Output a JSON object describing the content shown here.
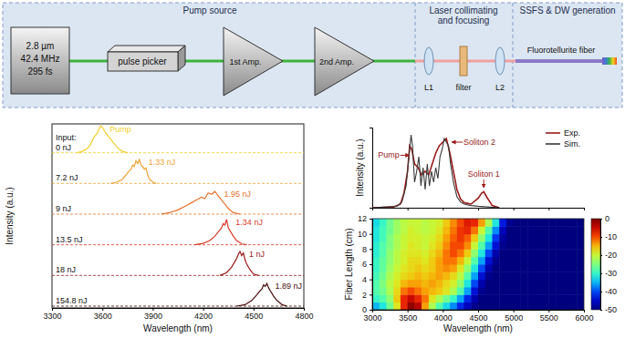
{
  "diagram": {
    "sections": [
      {
        "lines": [
          "Pump source"
        ]
      },
      {
        "lines": [
          "Laser collimating",
          "and focusing"
        ]
      },
      {
        "lines": [
          "SSFS & DW generation"
        ]
      }
    ],
    "source": {
      "lines": [
        "2.8 µm",
        "42.4 MHz",
        "295 fs"
      ]
    },
    "pulse_picker": "pulse picker",
    "amplifiers": [
      "1st Amp.",
      "2nd Amp."
    ],
    "optics": [
      "L1",
      "filter",
      "L2"
    ],
    "fiber": "Fluorotellurite fiber"
  },
  "chart_data": [
    {
      "type": "line",
      "xlabel": "Wavelength (nm)",
      "ylabel": "Intensity (a.u.)",
      "xlim": [
        3300,
        4800
      ],
      "xticks": [
        3300,
        3600,
        3900,
        4200,
        4500,
        4800
      ],
      "ylim": [
        0,
        1
      ],
      "tick_labels": "x",
      "stacked": true,
      "annotations": [
        "Input:"
      ],
      "series": [
        {
          "name": "0 nJ",
          "label": "Pump",
          "color": "#f2cf2a",
          "x": [
            3450,
            3480,
            3510,
            3530,
            3550,
            3570,
            3580,
            3590,
            3600,
            3610,
            3620,
            3640,
            3660,
            3680,
            3700,
            3720,
            3750
          ],
          "values": [
            0,
            0.05,
            0.15,
            0.3,
            0.55,
            0.7,
            0.85,
            0.95,
            0.9,
            0.8,
            0.7,
            0.55,
            0.4,
            0.25,
            0.12,
            0.05,
            0
          ]
        },
        {
          "name": "7.2 nJ",
          "label": "1.33 nJ",
          "color": "#f0a232",
          "x": [
            3650,
            3690,
            3720,
            3740,
            3760,
            3770,
            3780,
            3790,
            3800,
            3810,
            3820,
            3830,
            3840,
            3850,
            3860,
            3870,
            3880,
            3900,
            3920
          ],
          "values": [
            0,
            0.05,
            0.15,
            0.3,
            0.45,
            0.5,
            0.65,
            0.6,
            0.8,
            0.7,
            0.85,
            0.65,
            0.6,
            0.5,
            0.55,
            0.3,
            0.15,
            0.05,
            0
          ]
        },
        {
          "name": "9 nJ",
          "label": "1.95 nJ",
          "color": "#e8722c",
          "x": [
            3950,
            4000,
            4050,
            4100,
            4130,
            4160,
            4190,
            4210,
            4230,
            4250,
            4270,
            4290,
            4310,
            4330,
            4350,
            4380,
            4420
          ],
          "values": [
            0,
            0.05,
            0.15,
            0.3,
            0.4,
            0.5,
            0.6,
            0.55,
            0.75,
            0.7,
            0.8,
            0.65,
            0.5,
            0.35,
            0.2,
            0.05,
            0
          ]
        },
        {
          "name": "13.5 nJ",
          "label": "1.34 nJ",
          "color": "#d83a2a",
          "x": [
            4150,
            4200,
            4240,
            4270,
            4290,
            4310,
            4320,
            4330,
            4340,
            4350,
            4360,
            4380,
            4400,
            4430,
            4460
          ],
          "values": [
            0,
            0.05,
            0.15,
            0.3,
            0.45,
            0.6,
            0.75,
            0.7,
            0.9,
            0.6,
            0.5,
            0.3,
            0.15,
            0.03,
            0
          ]
        },
        {
          "name": "18 nJ",
          "label": "1 nJ",
          "color": "#9a1a1a",
          "x": [
            4300,
            4340,
            4370,
            4390,
            4400,
            4410,
            4420,
            4430,
            4440,
            4450,
            4460,
            4480,
            4500,
            4530
          ],
          "values": [
            0,
            0.1,
            0.3,
            0.5,
            0.6,
            0.75,
            0.85,
            0.7,
            0.8,
            0.55,
            0.4,
            0.2,
            0.05,
            0
          ]
        },
        {
          "name": "154.8 nJ",
          "label": "1.89 nJ",
          "color": "#4a0c0c",
          "x": [
            4400,
            4450,
            4490,
            4520,
            4540,
            4550,
            4560,
            4570,
            4580,
            4590,
            4600,
            4620,
            4640,
            4670,
            4700
          ],
          "values": [
            0,
            0.05,
            0.2,
            0.4,
            0.55,
            0.6,
            0.75,
            0.7,
            0.8,
            0.65,
            0.55,
            0.35,
            0.2,
            0.05,
            0
          ]
        }
      ]
    },
    {
      "type": "line",
      "ylabel": "Intensity (a.u.)",
      "xlim": [
        3000,
        6000
      ],
      "xticks": [
        3000,
        3500,
        4000,
        4500,
        5000,
        5500,
        6000
      ],
      "ylim": [
        0,
        1.1
      ],
      "tick_labels": false,
      "legend": "upper right",
      "annotations": [
        {
          "text": "Pump",
          "x": 3540,
          "y": 0.72
        },
        {
          "text": "Soliton 2",
          "x": 4100,
          "y": 0.9
        },
        {
          "text": "Soliton 1",
          "x": 4580,
          "y": 0.25
        }
      ],
      "series": [
        {
          "name": "Exp.",
          "color": "#9b1c1c",
          "x": [
            3000,
            3300,
            3400,
            3450,
            3500,
            3530,
            3560,
            3600,
            3650,
            3700,
            3750,
            3800,
            3850,
            3900,
            3950,
            4000,
            4050,
            4100,
            4150,
            4200,
            4250,
            4300,
            4400,
            4500,
            4550,
            4580,
            4620,
            4700,
            4800
          ],
          "values": [
            0,
            0.01,
            0.05,
            0.2,
            0.5,
            0.85,
            0.8,
            0.6,
            0.55,
            0.45,
            0.5,
            0.45,
            0.6,
            0.75,
            0.85,
            0.9,
            0.95,
            0.75,
            0.5,
            0.25,
            0.12,
            0.07,
            0.05,
            0.13,
            0.2,
            0.22,
            0.15,
            0.03,
            0
          ]
        },
        {
          "name": "Sim.",
          "color": "#3a3a3a",
          "x": [
            3000,
            3350,
            3420,
            3480,
            3520,
            3550,
            3570,
            3600,
            3630,
            3660,
            3690,
            3720,
            3750,
            3780,
            3810,
            3840,
            3870,
            3900,
            3930,
            3960,
            3990,
            4020,
            4050,
            4080,
            4110,
            4150,
            4200,
            4250,
            4300,
            4400,
            4500,
            4800
          ],
          "values": [
            0,
            0.02,
            0.08,
            0.3,
            0.7,
            1.0,
            0.85,
            0.35,
            0.5,
            0.7,
            0.3,
            0.55,
            0.25,
            0.6,
            0.3,
            0.5,
            0.35,
            0.55,
            0.4,
            0.7,
            0.8,
            0.95,
            0.9,
            0.85,
            0.6,
            0.35,
            0.15,
            0.08,
            0.05,
            0.03,
            0.02,
            0
          ]
        }
      ]
    },
    {
      "type": "heatmap",
      "xlabel": "Wavelength (nm)",
      "ylabel": "Fiber Length (cm)",
      "xlim": [
        3000,
        6000
      ],
      "xticks": [
        3000,
        3500,
        4000,
        4500,
        5000,
        5500,
        6000
      ],
      "ylim": [
        0,
        12
      ],
      "yticks": [
        0,
        2,
        4,
        6,
        8,
        10,
        12
      ],
      "x": [
        3000,
        3100,
        3200,
        3300,
        3400,
        3500,
        3600,
        3700,
        3800,
        3900,
        4000,
        4100,
        4200,
        4300,
        4400,
        4500,
        4600,
        4700,
        4800,
        4900,
        5000,
        5100,
        5200,
        5300,
        5400,
        5500,
        5600,
        5700,
        5800,
        5900
      ],
      "y": [
        0,
        1,
        2,
        3,
        4,
        5,
        6,
        7,
        8,
        9,
        10,
        11
      ],
      "cells": [
        [
          -35,
          -32,
          -26,
          -18,
          -8,
          -1,
          -4,
          -14,
          -22,
          -28,
          -33,
          -37,
          -42,
          -46,
          -49,
          -50,
          -50,
          -50,
          -50,
          -50,
          -50,
          -50,
          -50,
          -50,
          -50,
          -50,
          -50,
          -50,
          -50,
          -50
        ],
        [
          -30,
          -28,
          -24,
          -16,
          -8,
          -5,
          -8,
          -12,
          -18,
          -22,
          -26,
          -30,
          -36,
          -42,
          -47,
          -50,
          -50,
          -50,
          -50,
          -50,
          -50,
          -50,
          -50,
          -50,
          -50,
          -50,
          -50,
          -50,
          -50,
          -50
        ],
        [
          -28,
          -26,
          -22,
          -17,
          -12,
          -10,
          -12,
          -14,
          -15,
          -16,
          -18,
          -22,
          -28,
          -36,
          -44,
          -49,
          -50,
          -50,
          -50,
          -50,
          -50,
          -50,
          -50,
          -50,
          -50,
          -50,
          -50,
          -50,
          -50,
          -50
        ],
        [
          -28,
          -25,
          -21,
          -18,
          -15,
          -14,
          -14,
          -15,
          -14,
          -15,
          -17,
          -19,
          -24,
          -32,
          -40,
          -47,
          -50,
          -50,
          -50,
          -50,
          -50,
          -50,
          -50,
          -50,
          -50,
          -50,
          -50,
          -50,
          -50,
          -50
        ],
        [
          -29,
          -26,
          -22,
          -19,
          -17,
          -16,
          -15,
          -16,
          -15,
          -14,
          -15,
          -17,
          -21,
          -28,
          -36,
          -44,
          -49,
          -50,
          -50,
          -50,
          -50,
          -50,
          -50,
          -50,
          -50,
          -50,
          -50,
          -50,
          -50,
          -50
        ],
        [
          -30,
          -27,
          -23,
          -20,
          -18,
          -17,
          -16,
          -17,
          -16,
          -14,
          -13,
          -14,
          -18,
          -24,
          -32,
          -40,
          -47,
          -50,
          -50,
          -50,
          -50,
          -50,
          -50,
          -50,
          -50,
          -50,
          -50,
          -50,
          -50,
          -50
        ],
        [
          -30,
          -27,
          -24,
          -21,
          -19,
          -17,
          -17,
          -18,
          -16,
          -14,
          -12,
          -12,
          -15,
          -20,
          -28,
          -36,
          -44,
          -49,
          -50,
          -50,
          -50,
          -50,
          -50,
          -50,
          -50,
          -50,
          -50,
          -50,
          -50,
          -50
        ],
        [
          -31,
          -28,
          -24,
          -21,
          -19,
          -18,
          -18,
          -19,
          -17,
          -15,
          -12,
          -10,
          -12,
          -16,
          -24,
          -32,
          -40,
          -47,
          -50,
          -50,
          -50,
          -50,
          -50,
          -50,
          -50,
          -50,
          -50,
          -50,
          -50,
          -50
        ],
        [
          -31,
          -28,
          -25,
          -22,
          -20,
          -18,
          -19,
          -20,
          -18,
          -16,
          -13,
          -10,
          -10,
          -13,
          -20,
          -28,
          -36,
          -44,
          -49,
          -50,
          -50,
          -50,
          -50,
          -50,
          -50,
          -50,
          -50,
          -50,
          -50,
          -50
        ],
        [
          -32,
          -29,
          -25,
          -22,
          -20,
          -19,
          -19,
          -20,
          -19,
          -17,
          -14,
          -11,
          -9,
          -11,
          -16,
          -24,
          -32,
          -41,
          -48,
          -50,
          -50,
          -50,
          -50,
          -50,
          -50,
          -50,
          -50,
          -50,
          -50,
          -50
        ],
        [
          -32,
          -29,
          -26,
          -23,
          -21,
          -19,
          -20,
          -21,
          -20,
          -18,
          -15,
          -12,
          -9,
          -8,
          -12,
          -20,
          -28,
          -37,
          -46,
          -50,
          -50,
          -50,
          -50,
          -50,
          -50,
          -50,
          -50,
          -50,
          -50,
          -50
        ],
        [
          -33,
          -30,
          -26,
          -23,
          -21,
          -20,
          -20,
          -21,
          -20,
          -19,
          -16,
          -13,
          -10,
          -7,
          -8,
          -14,
          -22,
          -32,
          -43,
          -49,
          -50,
          -50,
          -50,
          -50,
          -50,
          -50,
          -50,
          -50,
          -50,
          -50
        ]
      ],
      "colorbar_range": [
        -50,
        0
      ],
      "colorbar_ticks": [
        0,
        -10,
        -20,
        -30,
        -40,
        -50
      ]
    }
  ]
}
